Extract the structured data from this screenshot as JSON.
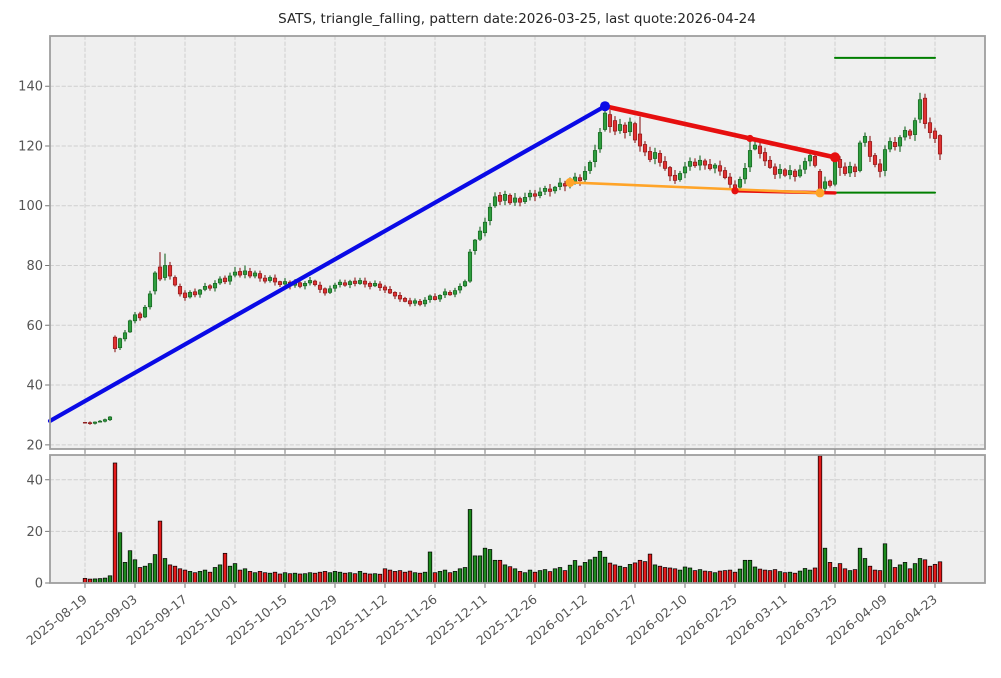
{
  "title": "SATS, triangle_falling, pattern date:2026-03-25, last quote:2026-04-24",
  "chart_data": {
    "type": "candlestick+volume",
    "symbol": "SATS",
    "pattern_name": "triangle_falling",
    "pattern_date": "2026-03-25",
    "last_quote_date": "2026-04-24",
    "x_tick_labels": [
      "2025-08-19",
      "2025-09-03",
      "2025-09-17",
      "2025-10-01",
      "2025-10-15",
      "2025-10-29",
      "2025-11-12",
      "2025-11-26",
      "2025-12-11",
      "2025-12-26",
      "2026-01-12",
      "2026-01-27",
      "2026-02-10",
      "2026-02-25",
      "2026-03-11",
      "2026-03-25",
      "2026-04-09",
      "2026-04-23"
    ],
    "x_ticks_every_n_candles": 10,
    "price_axis": {
      "ticks": [
        20,
        40,
        60,
        80,
        100,
        120,
        140
      ],
      "ylim": [
        18.6,
        156.8
      ]
    },
    "volume_axis": {
      "ticks": [
        0,
        20,
        40
      ],
      "ylim": [
        0,
        49.6
      ]
    },
    "candles_format": [
      "open",
      "close",
      "volume",
      "high_or_null",
      "low_or_null"
    ],
    "candles": [
      [
        27.5,
        27.3,
        1.8
      ],
      [
        27.4,
        27.1,
        1.5
      ],
      [
        27.2,
        27.6,
        1.6
      ],
      [
        27.6,
        27.9,
        1.7
      ],
      [
        27.9,
        28.4,
        1.9
      ],
      [
        28.4,
        29.3,
        2.8
      ],
      [
        56.0,
        52.2,
        46.5,
        56.6,
        51.0
      ],
      [
        52.5,
        55.5,
        19.5
      ],
      [
        55.5,
        57.5,
        8.0
      ],
      [
        57.8,
        61.5,
        12.5
      ],
      [
        61.5,
        63.5,
        9.0
      ],
      [
        63.8,
        62.5,
        6.0
      ],
      [
        62.8,
        66.0,
        6.5
      ],
      [
        66.2,
        70.5,
        7.5
      ],
      [
        71.5,
        77.5,
        11.0
      ],
      [
        79.5,
        75.5,
        24.0,
        84.5,
        74.8
      ],
      [
        76.0,
        80.0,
        9.5,
        84.0,
        null
      ],
      [
        80.0,
        76.5,
        7.0
      ],
      [
        76.0,
        73.5,
        6.5
      ],
      [
        73.0,
        70.5,
        5.5
      ],
      [
        70.8,
        69.3,
        5.0
      ],
      [
        69.5,
        71.0,
        4.5
      ],
      [
        71.2,
        70.2,
        4.0
      ],
      [
        70.4,
        71.8,
        4.5
      ],
      [
        72.0,
        73.0,
        5.0
      ],
      [
        73.2,
        72.4,
        4.2
      ],
      [
        72.5,
        74.0,
        6.0
      ],
      [
        74.2,
        75.5,
        7.0
      ],
      [
        75.8,
        74.6,
        11.5
      ],
      [
        74.8,
        76.5,
        6.5
      ],
      [
        76.8,
        77.8,
        7.5,
        79.5,
        null
      ],
      [
        78.0,
        76.8,
        5.0
      ],
      [
        77.0,
        78.2,
        5.5,
        80.0,
        null
      ],
      [
        78.0,
        76.5,
        4.5
      ],
      [
        76.5,
        77.5,
        4.0
      ],
      [
        77.3,
        75.8,
        4.5
      ],
      [
        75.8,
        74.8,
        4.0
      ],
      [
        75.0,
        76.0,
        3.8
      ],
      [
        75.8,
        74.5,
        4.2
      ],
      [
        74.6,
        73.6,
        3.5
      ],
      [
        73.8,
        74.6,
        4.0
      ],
      [
        74.4,
        73.2,
        3.6
      ],
      [
        73.4,
        74.4,
        3.8
      ],
      [
        74.2,
        73.0,
        3.5
      ],
      [
        73.2,
        74.0,
        3.6
      ],
      [
        74.2,
        75.0,
        4.0
      ],
      [
        74.8,
        73.6,
        3.8
      ],
      [
        73.4,
        72.0,
        4.2
      ],
      [
        72.2,
        70.8,
        4.5
      ],
      [
        71.0,
        72.2,
        4.0
      ],
      [
        72.4,
        73.4,
        4.5
      ],
      [
        73.6,
        74.4,
        4.2
      ],
      [
        74.2,
        73.4,
        3.8
      ],
      [
        73.6,
        74.6,
        4.0
      ],
      [
        74.8,
        74.0,
        3.6
      ],
      [
        74.0,
        75.0,
        4.5,
        75.9,
        null
      ],
      [
        74.8,
        73.8,
        3.8
      ],
      [
        74.0,
        73.0,
        3.5
      ],
      [
        73.2,
        74.0,
        3.6
      ],
      [
        73.8,
        72.6,
        3.4
      ],
      [
        72.8,
        71.8,
        5.5
      ],
      [
        72.0,
        70.8,
        5.0
      ],
      [
        71.0,
        69.8,
        4.5
      ],
      [
        70.0,
        68.8,
        4.8
      ],
      [
        69.0,
        68.0,
        4.2
      ],
      [
        68.2,
        67.2,
        4.6,
        null,
        66.3
      ],
      [
        67.4,
        68.2,
        4.0
      ],
      [
        68.0,
        67.0,
        3.8,
        null,
        66.4
      ],
      [
        67.2,
        68.4,
        4.2
      ],
      [
        68.6,
        69.8,
        12.0
      ],
      [
        69.6,
        68.6,
        4.0
      ],
      [
        68.8,
        70.0,
        4.5
      ],
      [
        70.2,
        71.2,
        5.0
      ],
      [
        71.0,
        70.2,
        4.0
      ],
      [
        70.4,
        71.6,
        4.5
      ],
      [
        71.8,
        73.0,
        5.5
      ],
      [
        73.2,
        74.6,
        6.0
      ],
      [
        74.8,
        84.5,
        28.5,
        85.5,
        74.2
      ],
      [
        85.0,
        88.5,
        10.5
      ],
      [
        88.8,
        91.5,
        10.5
      ],
      [
        91.0,
        94.5,
        13.5,
        96.0,
        null
      ],
      [
        95.0,
        99.5,
        13.0
      ],
      [
        100.0,
        103.0,
        8.8,
        104.5,
        null
      ],
      [
        103.5,
        101.5,
        8.8
      ],
      [
        101.8,
        103.8,
        7.0,
        105.0,
        null
      ],
      [
        103.5,
        101.0,
        6.3
      ],
      [
        101.2,
        102.6,
        5.5
      ],
      [
        102.4,
        101.2,
        4.5,
        null,
        99.8
      ],
      [
        101.4,
        102.8,
        4.0
      ],
      [
        103.0,
        104.2,
        5.0
      ],
      [
        104.0,
        103.2,
        4.2
      ],
      [
        103.4,
        104.6,
        4.8
      ],
      [
        104.8,
        105.8,
        5.2
      ],
      [
        105.6,
        104.8,
        4.4
      ],
      [
        105.0,
        106.2,
        5.5
      ],
      [
        106.4,
        107.6,
        6.0
      ],
      [
        107.4,
        106.6,
        4.8
      ],
      [
        106.8,
        108.0,
        6.9
      ],
      [
        108.2,
        109.6,
        8.7
      ],
      [
        109.4,
        108.4,
        6.6
      ],
      [
        108.8,
        111.5,
        8.0
      ],
      [
        111.8,
        114.5,
        9.0
      ],
      [
        114.8,
        118.5,
        10.0
      ],
      [
        119.0,
        124.5,
        12.3,
        126.0,
        null
      ],
      [
        125.5,
        131.0,
        10.0,
        133.3,
        124.8
      ],
      [
        130.5,
        126.5,
        7.7,
        132.0,
        null
      ],
      [
        128.5,
        125.0,
        7.0
      ],
      [
        125.2,
        127.2,
        6.5
      ],
      [
        127.0,
        124.5,
        6.0
      ],
      [
        124.8,
        128.0,
        7.2,
        129.5,
        null
      ],
      [
        127.5,
        122.0,
        7.8
      ],
      [
        124.0,
        120.0,
        8.8,
        129.8,
        null
      ],
      [
        120.5,
        118.0,
        8.3
      ],
      [
        118.2,
        115.5,
        11.2
      ],
      [
        115.8,
        117.8,
        7.0
      ],
      [
        117.5,
        114.5,
        6.5
      ],
      [
        114.8,
        112.5,
        6.0
      ],
      [
        112.8,
        110.0,
        5.8
      ],
      [
        110.2,
        108.5,
        5.5,
        null,
        107.3
      ],
      [
        108.8,
        110.8,
        5.0
      ],
      [
        111.0,
        113.0,
        6.2
      ],
      [
        113.2,
        114.8,
        5.8
      ],
      [
        114.6,
        113.4,
        4.8
      ],
      [
        113.6,
        115.2,
        5.2,
        116.8,
        null
      ],
      [
        115.0,
        113.6,
        4.6
      ],
      [
        113.8,
        112.4,
        4.4
      ],
      [
        112.6,
        113.6,
        4.0
      ],
      [
        113.4,
        111.6,
        4.6
      ],
      [
        111.8,
        109.4,
        4.8
      ],
      [
        109.6,
        107.2,
        5.0
      ],
      [
        107.0,
        106.0,
        4.2,
        null,
        104.6
      ],
      [
        106.2,
        108.8,
        5.4
      ],
      [
        109.0,
        112.5,
        8.8
      ],
      [
        113.0,
        118.5,
        8.8,
        122.3,
        null
      ],
      [
        119.0,
        120.3,
        6.2,
        121.8,
        null
      ],
      [
        120.0,
        117.5,
        5.4
      ],
      [
        117.8,
        115.0,
        5.0
      ],
      [
        115.2,
        112.8,
        4.8
      ],
      [
        113.0,
        110.5,
        5.2
      ],
      [
        110.8,
        112.2,
        4.4
      ],
      [
        112.0,
        110.2,
        4.0
      ],
      [
        110.4,
        111.8,
        4.2
      ],
      [
        111.6,
        109.8,
        3.8
      ],
      [
        110.0,
        112.0,
        4.6
      ],
      [
        112.2,
        114.8,
        5.6
      ],
      [
        115.0,
        116.8,
        5.0,
        118.0,
        null
      ],
      [
        116.5,
        113.5,
        5.8
      ],
      [
        111.5,
        105.5,
        49.3,
        112.3,
        104.2
      ],
      [
        105.8,
        108.0,
        13.5
      ],
      [
        108.2,
        106.8,
        8.0
      ],
      [
        107.2,
        115.0,
        6.0,
        116.2,
        106.5
      ],
      [
        115.5,
        112.8,
        7.5,
        null,
        110.0
      ],
      [
        113.0,
        110.8,
        5.5
      ],
      [
        111.0,
        113.2,
        4.8
      ],
      [
        113.0,
        111.4,
        5.2
      ],
      [
        111.8,
        121.0,
        13.5,
        121.8,
        111.2
      ],
      [
        121.2,
        123.2,
        9.5,
        124.5,
        null
      ],
      [
        121.5,
        116.5,
        6.5
      ],
      [
        116.8,
        113.8,
        5.0
      ],
      [
        114.0,
        111.5,
        4.8,
        null,
        109.5
      ],
      [
        111.8,
        118.8,
        15.2
      ],
      [
        119.0,
        121.5,
        9.0
      ],
      [
        121.2,
        119.8,
        6.0
      ],
      [
        120.0,
        122.8,
        7.0
      ],
      [
        123.0,
        125.2,
        8.0,
        126.5,
        null
      ],
      [
        125.0,
        123.6,
        5.5
      ],
      [
        123.8,
        128.5,
        7.5,
        129.5,
        null
      ],
      [
        129.0,
        135.5,
        9.5,
        137.8,
        null
      ],
      [
        136.0,
        127.5,
        9.0,
        137.5,
        125.8
      ],
      [
        127.8,
        124.5,
        6.5,
        null,
        122.5
      ],
      [
        125.0,
        122.5,
        7.2,
        null,
        121.0
      ],
      [
        123.5,
        117.3,
        8.2,
        123.9,
        115.3
      ]
    ],
    "overlays": {
      "blue_trendline": {
        "from": [
          -7,
          28.0
        ],
        "to": [
          104,
          133.3
        ],
        "end_dot_radius": 5
      },
      "red_resistance": {
        "from": [
          104,
          133.3
        ],
        "to": [
          150,
          116.2
        ],
        "mid_dot": [
          133,
          122.5
        ],
        "mid_dot_radius": 3.6,
        "end_dot_radius": 5
      },
      "red_support": {
        "from": [
          130,
          105.0
        ],
        "to": [
          150,
          104.3
        ],
        "start_dot_radius": 3.6
      },
      "orange_line": {
        "from": [
          97,
          107.8
        ],
        "to": [
          147,
          104.3
        ],
        "dot_radius": 4.5
      },
      "green_upper_level": {
        "from": [
          150,
          149.5
        ],
        "to": [
          170,
          149.5
        ]
      },
      "green_lower_level": {
        "from": [
          150,
          104.4
        ],
        "to": [
          170,
          104.4
        ]
      }
    },
    "wick_model": {
      "base": 0.3,
      "amp": 1.0,
      "f_up": 1.37,
      "f_dn": 2.11,
      "price_scale": 80
    },
    "colors": {
      "up_fill": "#2f9e3f",
      "up_edge": "#176421",
      "down_fill": "#e03131",
      "down_edge": "#8c1a1a",
      "vol_up_fill": "#1d8a1d",
      "vol_down_fill": "#e31b1b",
      "vol_edge": "#000000",
      "blue_line": "#0a0ae6",
      "red_line": "#e60f0f",
      "orange_line": "#ffa428",
      "green_line": "#007f00",
      "panel_bg": "#efefef",
      "grid": "#cfcfcf",
      "spine": "#9e9e9e",
      "tick": "#777777",
      "tick_label": "#555555",
      "title": "#262626"
    }
  }
}
